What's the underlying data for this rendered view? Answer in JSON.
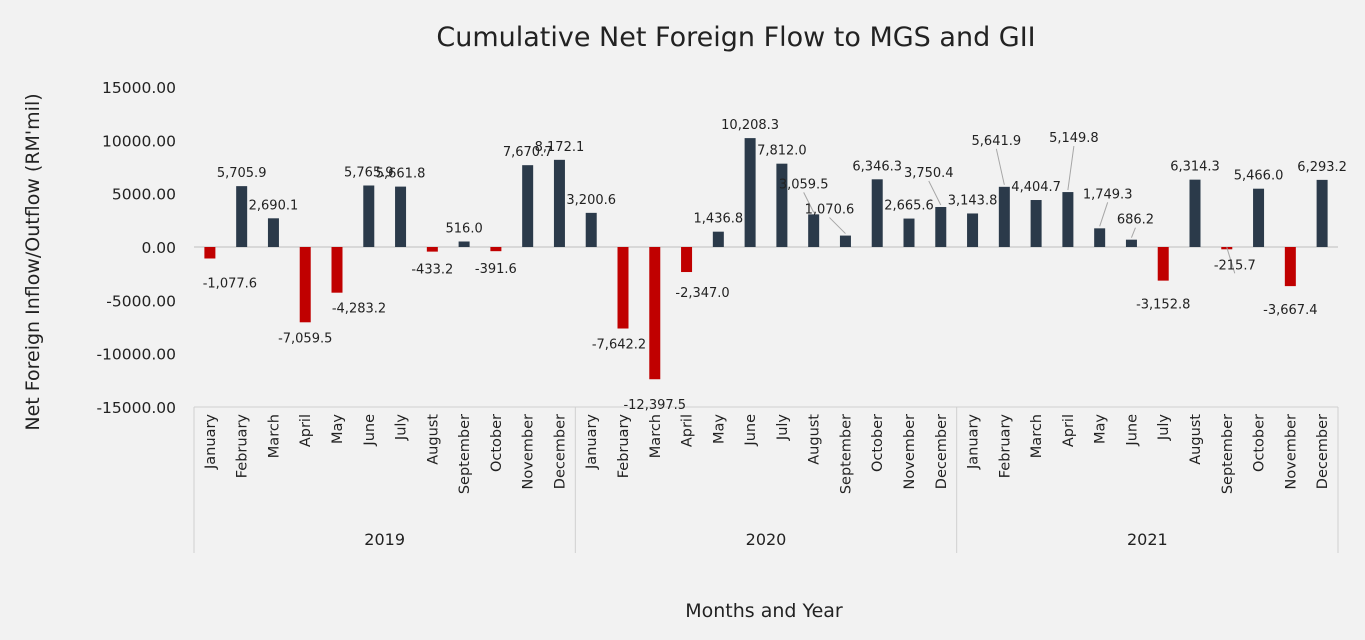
{
  "chart_data": {
    "type": "bar",
    "title": "Cumulative Net Foreign Flow to MGS and GII",
    "xlabel": "Months and Year",
    "ylabel": "Net Foreign Inflow/Outflow (RM'mil)",
    "ylim": [
      -15000,
      15000
    ],
    "yticks": [
      15000,
      10000,
      5000,
      0,
      -5000,
      -10000,
      -15000
    ],
    "ytick_labels": [
      "15000.00",
      "10000.00",
      "5000.00",
      "0.00",
      "-5000.00",
      "-10000.00",
      "-15000.00"
    ],
    "grid": false,
    "colors": {
      "positive": "#2b3a4a",
      "negative": "#c00000"
    },
    "groups": [
      {
        "year": "2019",
        "months": [
          "January",
          "February",
          "March",
          "April",
          "May",
          "June",
          "July",
          "August",
          "September",
          "October",
          "November",
          "December"
        ],
        "values": [
          -1077.6,
          5705.9,
          2690.1,
          -7059.5,
          -4283.2,
          5765.9,
          5661.8,
          -433.2,
          516.0,
          -391.6,
          7670.7,
          8172.1
        ],
        "labels": [
          "-1,077.6",
          "5,705.9",
          "2,690.1",
          "-7,059.5",
          "-4,283.2",
          "5,765.9",
          "5,661.8",
          "-433.2",
          "516.0",
          "-391.6",
          "7,670.7",
          "8,172.1"
        ]
      },
      {
        "year": "2020",
        "months": [
          "January",
          "February",
          "March",
          "April",
          "May",
          "June",
          "July",
          "August",
          "September",
          "October",
          "November",
          "December"
        ],
        "values": [
          3200.6,
          -7642.2,
          -12397.5,
          -2347.0,
          1436.8,
          10208.3,
          7812.0,
          3059.5,
          1070.6,
          6346.3,
          2665.6,
          3750.4
        ],
        "labels": [
          "3,200.6",
          "-7,642.2",
          "-12,397.5",
          "-2,347.0",
          "1,436.8",
          "10,208.3",
          "7,812.0",
          "3,059.5",
          "1,070.6",
          "6,346.3",
          "2,665.6",
          "3,750.4"
        ]
      },
      {
        "year": "2021",
        "months": [
          "January",
          "February",
          "March",
          "April",
          "May",
          "June",
          "July",
          "August",
          "September",
          "October",
          "November",
          "December"
        ],
        "values": [
          3143.8,
          5641.9,
          4404.7,
          5149.8,
          1749.3,
          686.2,
          -3152.8,
          6314.3,
          -215.7,
          5466.0,
          -3667.4,
          6293.2
        ],
        "labels": [
          "3,143.8",
          "5,641.9",
          "4,404.7",
          "5,149.8",
          "1,749.3",
          "686.2",
          "-3,152.8",
          "6,314.3",
          "-215.7",
          "5,466.0",
          "-3,667.4",
          "6,293.2"
        ]
      }
    ]
  }
}
